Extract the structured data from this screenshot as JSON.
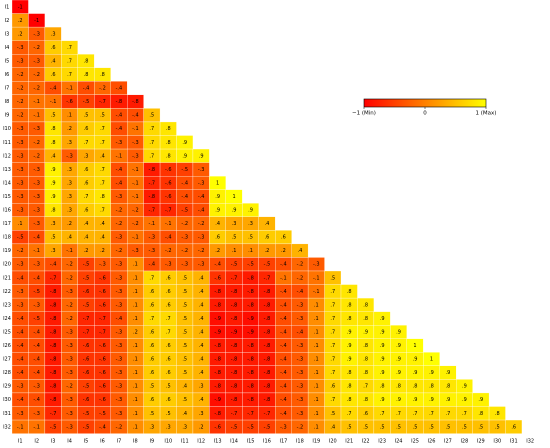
{
  "chart_data": {
    "type": "heatmap",
    "categories": [
      "I1",
      "I2",
      "I3",
      "I4",
      "I5",
      "I6",
      "I7",
      "I8",
      "I9",
      "I10",
      "I11",
      "I12",
      "I13",
      "I14",
      "I15",
      "I16",
      "I17",
      "I18",
      "I19",
      "I20",
      "I21",
      "I22",
      "I23",
      "I24",
      "I25",
      "I26",
      "I27",
      "I28",
      "I29",
      "I30",
      "I31",
      "I32"
    ],
    "colorscale": [
      "#ff0000",
      "#ff8000",
      "#ffff00"
    ],
    "clim": [
      -1,
      1
    ],
    "colorbar_ticks": [
      {
        "value": -1,
        "label": "−1 (Min)"
      },
      {
        "value": 0,
        "label": "0"
      },
      {
        "value": 1,
        "label": "1 (Max)"
      }
    ],
    "rows": [
      {
        "values": [
          -1
        ],
        "value_labels": [
          "-1"
        ]
      },
      {
        "values": [
          0.2,
          -1
        ],
        "value_labels": [
          ".2",
          "-1"
        ]
      },
      {
        "values": [
          0.2,
          -0.3,
          0.3
        ],
        "value_labels": [
          ".2",
          "-.3",
          ".3"
        ]
      },
      {
        "values": [
          -0.3,
          -0.2,
          0.6,
          0.7
        ],
        "value_labels": [
          "-.3",
          "-.2",
          ".6",
          ".7"
        ]
      },
      {
        "values": [
          -0.3,
          -0.3,
          0.4,
          0.7,
          0.8
        ],
        "value_labels": [
          "-.3",
          "-.3",
          ".4",
          ".7",
          ".8"
        ]
      },
      {
        "values": [
          -0.2,
          -0.2,
          0.6,
          0.7,
          0.8,
          0.8
        ],
        "value_labels": [
          "-.2",
          "-.2",
          ".6",
          ".7",
          ".8",
          ".8"
        ]
      },
      {
        "values": [
          -0.2,
          -0.2,
          -0.4,
          -0.1,
          -0.4,
          -0.2,
          -0.4
        ],
        "value_labels": [
          "-.2",
          "-.2",
          "-.4",
          "-.1",
          "-.4",
          "-.2",
          "-.4"
        ]
      },
      {
        "values": [
          -0.2,
          -0.1,
          -0.1,
          -0.6,
          -0.5,
          -0.7,
          -0.8,
          -0.8
        ],
        "value_labels": [
          "-.2",
          "-.1",
          "-.1",
          "-.6",
          "-.5",
          "-.7",
          "-.8",
          "-.8"
        ]
      },
      {
        "values": [
          -0.2,
          -0.1,
          0.5,
          0.1,
          0.5,
          0.5,
          -0.4,
          -0.4,
          0.5
        ],
        "value_labels": [
          "-.2",
          "-.1",
          ".5",
          ".1",
          ".5",
          ".5",
          "-.4",
          "-.4",
          ".5"
        ]
      },
      {
        "values": [
          -0.3,
          -0.3,
          0.8,
          0.2,
          0.6,
          0.7,
          -0.4,
          -0.1,
          0.7,
          0.8
        ],
        "value_labels": [
          "-.3",
          "-.3",
          ".8",
          ".2",
          ".6",
          ".7",
          "-.4",
          "-.1",
          ".7",
          ".8"
        ]
      },
      {
        "values": [
          -0.3,
          -0.2,
          0.8,
          0.3,
          0.7,
          0.7,
          -0.3,
          -0.3,
          0.7,
          0.8,
          0.9
        ],
        "value_labels": [
          "-.3",
          "-.2",
          ".8",
          ".3",
          ".7",
          ".7",
          "-.3",
          "-.3",
          ".7",
          ".8",
          ".9"
        ]
      },
      {
        "values": [
          -0.3,
          -0.2,
          0.4,
          -0.3,
          0.3,
          0.4,
          -0.1,
          -0.3,
          0.7,
          0.8,
          0.9,
          0.9
        ],
        "value_labels": [
          "-.3",
          "-.2",
          ".4",
          "-.3",
          ".3",
          ".4",
          "-.1",
          "-.3",
          ".7",
          ".8",
          ".9",
          ".9"
        ]
      },
      {
        "values": [
          -0.3,
          -0.3,
          0.9,
          0.3,
          0.6,
          0.7,
          -0.4,
          -0.1,
          -0.8,
          -0.6,
          -0.5,
          -0.3
        ],
        "value_labels": [
          "-.3",
          "-.3",
          ".9",
          ".3",
          ".6",
          ".7",
          "-.4",
          "-.1",
          "-.8",
          "-.6",
          "-.5",
          "-.3"
        ]
      },
      {
        "values": [
          -0.3,
          -0.3,
          0.9,
          0.3,
          0.6,
          0.7,
          -0.4,
          -0.1,
          -0.7,
          -0.6,
          -0.4,
          -0.3,
          1
        ],
        "value_labels": [
          "-.3",
          "-.3",
          ".9",
          ".3",
          ".6",
          ".7",
          "-.4",
          "-.1",
          "-.7",
          "-.6",
          "-.4",
          "-.3",
          "1"
        ]
      },
      {
        "values": [
          -0.3,
          -0.3,
          0.9,
          0.3,
          0.7,
          0.8,
          -0.3,
          -0.1,
          -0.8,
          -0.6,
          -0.4,
          -0.4,
          0.9,
          1
        ],
        "value_labels": [
          "-.3",
          "-.3",
          ".9",
          ".3",
          ".7",
          ".8",
          "-.3",
          "-.1",
          "-.8",
          "-.6",
          "-.4",
          "-.4",
          ".9",
          "1"
        ]
      },
      {
        "values": [
          -0.3,
          -0.3,
          0.8,
          0.3,
          0.6,
          0.7,
          -0.2,
          -0.2,
          -0.7,
          -0.7,
          -0.5,
          -0.4,
          0.9,
          0.9,
          0.9
        ],
        "value_labels": [
          "-.3",
          "-.3",
          ".8",
          ".3",
          ".6",
          ".7",
          "-.2",
          "-.2",
          "-.7",
          "-.7",
          "-.5",
          "-.4",
          ".9",
          ".9",
          ".9"
        ]
      },
      {
        "values": [
          0.1,
          -0.3,
          0.3,
          0.2,
          0.4,
          0.4,
          -0.2,
          -0.2,
          -0.1,
          -0.1,
          -0.2,
          -0.2,
          0.4,
          0.3,
          0.3,
          0.4
        ],
        "value_labels": [
          ".1",
          "-.3",
          ".3",
          ".2",
          ".4",
          ".4",
          "-.2",
          "-.2",
          "-.1",
          "-.1",
          "-.2",
          "-.2",
          ".4",
          ".3",
          ".3",
          ".4"
        ]
      },
      {
        "values": [
          -0.5,
          -0.4,
          0.5,
          0.4,
          0.4,
          0.4,
          -0.3,
          -0.1,
          -0.3,
          -0.4,
          -0.3,
          -0.3,
          0.6,
          0.5,
          0.5,
          0.6,
          0.6
        ],
        "value_labels": [
          "-.5",
          "-.4",
          ".5",
          ".4",
          ".4",
          ".4",
          "-.3",
          "-.1",
          "-.3",
          "-.4",
          "-.3",
          "-.3",
          ".6",
          ".5",
          ".5",
          ".6",
          ".6"
        ]
      },
      {
        "values": [
          -0.2,
          -0.1,
          0.3,
          -0.1,
          0.2,
          0.2,
          -0.2,
          -0.3,
          -0.3,
          -0.2,
          -0.2,
          -0.2,
          0.2,
          0.1,
          0.1,
          0.2,
          0.2,
          0.4
        ],
        "value_labels": [
          "-.2",
          "-.1",
          ".3",
          "-.1",
          ".2",
          ".2",
          "-.2",
          "-.3",
          "-.3",
          "-.2",
          "-.2",
          "-.2",
          ".2",
          ".1",
          ".1",
          ".2",
          ".2",
          ".4"
        ]
      },
      {
        "values": [
          -0.3,
          -0.3,
          -0.4,
          -0.2,
          -0.5,
          -0.3,
          -0.3,
          0.1,
          -0.4,
          -0.3,
          -0.3,
          -0.3,
          -0.4,
          -0.5,
          -0.5,
          -0.5,
          -0.4,
          -0.2,
          -0.3
        ],
        "value_labels": [
          "-.3",
          "-.3",
          "-.4",
          "-.2",
          "-.5",
          "-.3",
          "-.3",
          ".1",
          "-.4",
          "-.3",
          "-.3",
          "-.3",
          "-.4",
          "-.5",
          "-.5",
          "-.5",
          "-.4",
          "-.2",
          "-.3"
        ]
      },
      {
        "values": [
          -0.4,
          -0.4,
          -0.7,
          -0.2,
          -0.5,
          -0.6,
          -0.3,
          0.1,
          0.7,
          0.6,
          0.5,
          0.4,
          -0.6,
          -0.7,
          -0.8,
          -0.7,
          -0.1,
          -0.2,
          -0.1,
          0.5
        ],
        "value_labels": [
          "-.4",
          "-.4",
          "-.7",
          "-.2",
          "-.5",
          "-.6",
          "-.3",
          ".1",
          ".7",
          ".6",
          ".5",
          ".4",
          "-.6",
          "-.7",
          "-.8",
          "-.7",
          "-.1",
          "-.2",
          "-.1",
          ".5"
        ]
      },
      {
        "values": [
          -0.3,
          -0.5,
          -0.8,
          -0.3,
          -0.6,
          -0.6,
          -0.3,
          0.1,
          0.6,
          0.6,
          0.5,
          0.4,
          -0.8,
          -0.8,
          -0.8,
          -0.8,
          -0.4,
          -0.4,
          -0.1,
          0.7,
          0.8
        ],
        "value_labels": [
          "-.3",
          "-.5",
          "-.8",
          "-.3",
          "-.6",
          "-.6",
          "-.3",
          ".1",
          ".6",
          ".6",
          ".5",
          ".4",
          "-.8",
          "-.8",
          "-.8",
          "-.8",
          "-.4",
          "-.4",
          "-.1",
          ".7",
          ".8"
        ]
      },
      {
        "values": [
          -0.3,
          -0.3,
          -0.8,
          -0.2,
          -0.5,
          -0.6,
          -0.3,
          0.1,
          0.6,
          0.6,
          0.5,
          0.4,
          -0.8,
          -0.8,
          -0.8,
          -0.8,
          -0.4,
          -0.3,
          0.1,
          0.7,
          0.8,
          0.8
        ],
        "value_labels": [
          "-.3",
          "-.3",
          "-.8",
          "-.2",
          "-.5",
          "-.6",
          "-.3",
          ".1",
          ".6",
          ".6",
          ".5",
          ".4",
          "-.8",
          "-.8",
          "-.8",
          "-.8",
          "-.4",
          "-.3",
          ".1",
          ".7",
          ".8",
          ".8"
        ]
      },
      {
        "values": [
          -0.4,
          -0.5,
          -0.8,
          -0.2,
          -0.7,
          -0.7,
          -0.4,
          0.1,
          0.7,
          0.7,
          0.5,
          0.4,
          -0.9,
          -0.8,
          -0.9,
          -0.8,
          -0.4,
          -0.3,
          0.1,
          0.7,
          0.8,
          0.8,
          0.9
        ],
        "value_labels": [
          "-.4",
          "-.5",
          "-.8",
          "-.2",
          "-.7",
          "-.7",
          "-.4",
          ".1",
          ".7",
          ".7",
          ".5",
          ".4",
          "-.9",
          "-.8",
          "-.9",
          "-.8",
          "-.4",
          "-.3",
          ".1",
          ".7",
          ".8",
          ".8",
          ".9"
        ]
      },
      {
        "values": [
          -0.4,
          -0.4,
          -0.8,
          -0.3,
          -0.7,
          -0.7,
          -0.3,
          0.2,
          0.6,
          0.7,
          0.5,
          0.4,
          -0.9,
          -0.9,
          -0.9,
          -0.8,
          -0.4,
          -0.4,
          0.1,
          0.7,
          0.9,
          0.9,
          0.9,
          0.9
        ],
        "value_labels": [
          "-.4",
          "-.4",
          "-.8",
          "-.3",
          "-.7",
          "-.7",
          "-.3",
          ".2",
          ".6",
          ".7",
          ".5",
          ".4",
          "-.9",
          "-.9",
          "-.9",
          "-.8",
          "-.4",
          "-.4",
          ".1",
          ".7",
          ".9",
          ".9",
          ".9",
          ".9"
        ]
      },
      {
        "values": [
          -0.4,
          -0.4,
          -0.8,
          -0.3,
          -0.6,
          -0.6,
          -0.3,
          0.1,
          0.6,
          0.6,
          0.5,
          0.4,
          -0.8,
          -0.8,
          -0.8,
          -0.8,
          -0.4,
          -0.3,
          0.1,
          0.7,
          0.9,
          0.8,
          0.9,
          0.9,
          1
        ],
        "value_labels": [
          "-.4",
          "-.4",
          "-.8",
          "-.3",
          "-.6",
          "-.6",
          "-.3",
          ".1",
          ".6",
          ".6",
          ".5",
          ".4",
          "-.8",
          "-.8",
          "-.8",
          "-.8",
          "-.4",
          "-.3",
          ".1",
          ".7",
          ".9",
          ".8",
          ".9",
          ".9",
          "1"
        ]
      },
      {
        "values": [
          -0.4,
          -0.4,
          -0.8,
          -0.3,
          -0.6,
          -0.6,
          -0.3,
          0.1,
          0.6,
          0.6,
          0.5,
          0.4,
          -0.8,
          -0.8,
          -0.8,
          -0.8,
          -0.4,
          -0.3,
          0.1,
          0.7,
          0.9,
          0.8,
          0.9,
          0.9,
          0.9,
          1
        ],
        "value_labels": [
          "-.4",
          "-.4",
          "-.8",
          "-.3",
          "-.6",
          "-.6",
          "-.3",
          ".1",
          ".6",
          ".6",
          ".5",
          ".4",
          "-.8",
          "-.8",
          "-.8",
          "-.8",
          "-.4",
          "-.3",
          ".1",
          ".7",
          ".9",
          ".8",
          ".9",
          ".9",
          ".9",
          "1"
        ]
      },
      {
        "values": [
          -0.4,
          -0.4,
          -0.8,
          -0.3,
          -0.6,
          -0.6,
          -0.3,
          0.1,
          0.6,
          0.6,
          0.5,
          0.4,
          -0.8,
          -0.8,
          -0.8,
          -0.8,
          -0.4,
          -0.3,
          0.1,
          0.7,
          0.8,
          0.8,
          0.9,
          0.9,
          0.9,
          0.9,
          0.9
        ],
        "value_labels": [
          "-.4",
          "-.4",
          "-.8",
          "-.3",
          "-.6",
          "-.6",
          "-.3",
          ".1",
          ".6",
          ".6",
          ".5",
          ".4",
          "-.8",
          "-.8",
          "-.8",
          "-.8",
          "-.4",
          "-.3",
          ".1",
          ".7",
          ".8",
          ".8",
          ".9",
          ".9",
          ".9",
          ".9",
          ".9"
        ]
      },
      {
        "values": [
          -0.3,
          -0.3,
          -0.8,
          -0.2,
          -0.5,
          -0.6,
          -0.3,
          0.1,
          0.5,
          0.5,
          0.4,
          0.3,
          -0.8,
          -0.8,
          -0.8,
          -0.8,
          -0.4,
          -0.3,
          0.1,
          0.6,
          0.8,
          0.7,
          0.8,
          0.8,
          0.8,
          0.8,
          0.8,
          0.9
        ],
        "value_labels": [
          "-.3",
          "-.3",
          "-.8",
          "-.2",
          "-.5",
          "-.6",
          "-.3",
          ".1",
          ".5",
          ".5",
          ".4",
          ".3",
          "-.8",
          "-.8",
          "-.8",
          "-.8",
          "-.4",
          "-.3",
          ".1",
          ".6",
          ".8",
          ".7",
          ".8",
          ".8",
          ".8",
          ".8",
          ".8",
          ".9"
        ]
      },
      {
        "values": [
          -0.4,
          -0.4,
          -0.8,
          -0.3,
          -0.6,
          -0.6,
          -0.3,
          0.1,
          0.6,
          0.6,
          0.5,
          0.4,
          -0.9,
          -0.8,
          -0.8,
          -0.8,
          -0.4,
          -0.3,
          0.1,
          0.7,
          0.8,
          0.8,
          0.9,
          0.9,
          0.9,
          0.9,
          0.9,
          0.9,
          0.9
        ],
        "value_labels": [
          "-.4",
          "-.4",
          "-.8",
          "-.3",
          "-.6",
          "-.6",
          "-.3",
          ".1",
          ".6",
          ".6",
          ".5",
          ".4",
          "-.9",
          "-.8",
          "-.8",
          "-.8",
          "-.4",
          "-.3",
          ".1",
          ".7",
          ".8",
          ".8",
          ".9",
          ".9",
          ".9",
          ".9",
          ".9",
          ".9",
          ".9"
        ]
      },
      {
        "values": [
          -0.3,
          -0.3,
          -0.7,
          -0.3,
          -0.5,
          -0.5,
          -0.3,
          0.1,
          0.5,
          0.5,
          0.4,
          0.3,
          -0.8,
          -0.7,
          -0.7,
          -0.7,
          -0.4,
          -0.3,
          0.1,
          0.5,
          0.7,
          0.6,
          0.7,
          0.7,
          0.7,
          0.7,
          0.7,
          0.7,
          0.8,
          0.8
        ],
        "value_labels": [
          "-.3",
          "-.3",
          "-.7",
          "-.3",
          "-.5",
          "-.5",
          "-.3",
          ".1",
          ".5",
          ".5",
          ".4",
          ".3",
          "-.8",
          "-.7",
          "-.7",
          "-.7",
          "-.4",
          "-.3",
          ".1",
          ".5",
          ".7",
          ".6",
          ".7",
          ".7",
          ".7",
          ".7",
          ".7",
          ".7",
          ".8",
          ".8"
        ]
      },
      {
        "values": [
          -0.1,
          -0.1,
          -0.5,
          -0.3,
          -0.5,
          -0.4,
          -0.2,
          0.1,
          0.3,
          0.3,
          0.3,
          0.2,
          -0.6,
          -0.5,
          -0.5,
          -0.5,
          -0.3,
          -0.2,
          0.1,
          0.4,
          0.5,
          0.5,
          0.5,
          0.5,
          0.5,
          0.5,
          0.5,
          0.5,
          0.5,
          0.5,
          0.6
        ],
        "value_labels": [
          "-.1",
          "-.1",
          "-.5",
          "-.3",
          "-.5",
          "-.4",
          "-.2",
          ".1",
          ".3",
          ".3",
          ".3",
          ".2",
          "-.6",
          "-.5",
          "-.5",
          "-.5",
          "-.3",
          "-.2",
          ".1",
          ".4",
          ".5",
          ".5",
          ".5",
          ".5",
          ".5",
          ".5",
          ".5",
          ".5",
          ".5",
          ".5",
          ".6"
        ]
      }
    ]
  }
}
